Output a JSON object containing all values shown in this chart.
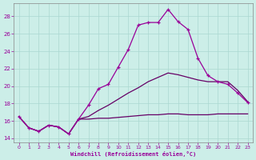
{
  "xlabel": "Windchill (Refroidissement éolien,°C)",
  "background_color": "#cceee8",
  "line_color": "#990099",
  "line_color2": "#660066",
  "x_hours": [
    0,
    1,
    2,
    3,
    4,
    5,
    6,
    7,
    8,
    9,
    10,
    11,
    12,
    13,
    14,
    15,
    16,
    17,
    18,
    19,
    20,
    21,
    22,
    23
  ],
  "windchill": [
    16.5,
    15.2,
    14.8,
    15.5,
    15.3,
    14.5,
    16.2,
    17.8,
    19.7,
    20.2,
    22.2,
    24.2,
    27.0,
    27.3,
    27.3,
    28.8,
    27.4,
    26.5,
    23.2,
    21.2,
    20.5,
    20.2,
    19.2,
    18.1
  ],
  "temp": [
    16.5,
    15.2,
    14.8,
    15.5,
    15.3,
    14.5,
    16.2,
    16.5,
    17.2,
    17.8,
    18.5,
    19.2,
    19.8,
    20.5,
    21.0,
    21.5,
    21.3,
    21.0,
    20.7,
    20.5,
    20.5,
    20.5,
    19.5,
    18.2
  ],
  "feels": [
    16.5,
    15.2,
    14.8,
    15.5,
    15.3,
    14.5,
    16.2,
    16.2,
    16.3,
    16.3,
    16.4,
    16.5,
    16.6,
    16.7,
    16.7,
    16.8,
    16.8,
    16.7,
    16.7,
    16.7,
    16.8,
    16.8,
    16.8,
    16.8
  ],
  "ylim": [
    13.5,
    29.5
  ],
  "xlim": [
    -0.5,
    23.5
  ],
  "yticks": [
    14,
    16,
    18,
    20,
    22,
    24,
    26,
    28
  ],
  "xticks": [
    0,
    1,
    2,
    3,
    4,
    5,
    6,
    7,
    8,
    9,
    10,
    11,
    12,
    13,
    14,
    15,
    16,
    17,
    18,
    19,
    20,
    21,
    22,
    23
  ],
  "grid_color": "#aad8d0"
}
